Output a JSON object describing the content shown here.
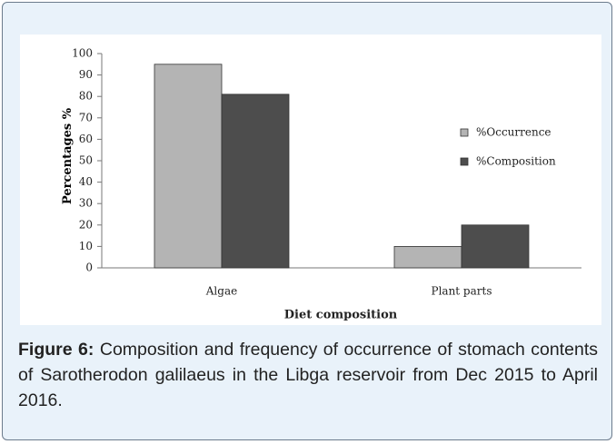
{
  "chart_data": {
    "type": "bar",
    "categories": [
      "Algae",
      "Plant parts"
    ],
    "series": [
      {
        "name": "%Occurrence",
        "color": "#b4b4b4",
        "values": [
          95,
          10
        ]
      },
      {
        "name": "%Composition",
        "color": "#4d4d4d",
        "values": [
          81,
          20
        ]
      }
    ],
    "ylim": [
      0,
      100
    ],
    "yticks": [
      0,
      10,
      20,
      30,
      40,
      50,
      60,
      70,
      80,
      90,
      100
    ],
    "x_label": "Diet composition",
    "y_label": "Percentages %",
    "legend": "right"
  },
  "caption": {
    "label": "Figure 6:",
    "text": "Composition and frequency of occurrence of stomach contents of Sarotherodon galilaeus in the Libga reservoir from Dec 2015 to April 2016."
  }
}
